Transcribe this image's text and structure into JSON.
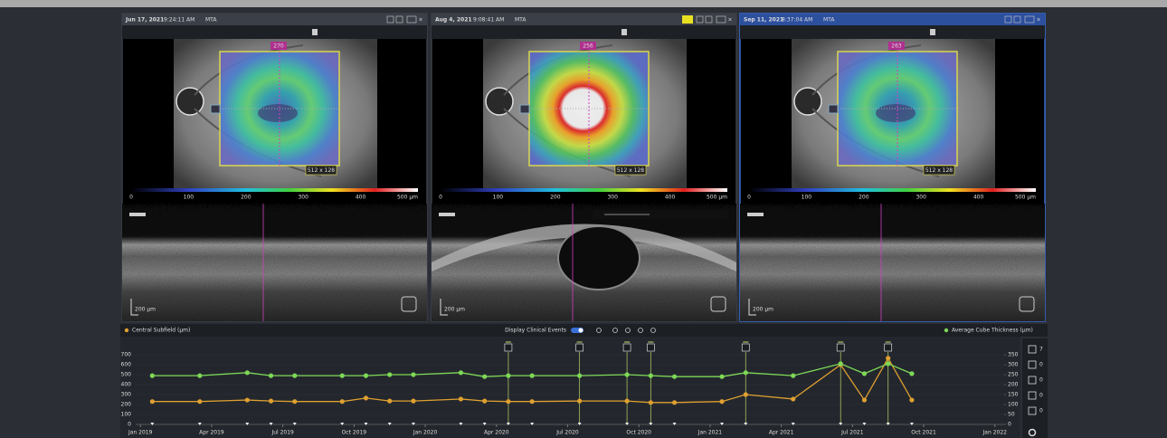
{
  "panels": [
    {
      "date": "Jun 17, 2021",
      "time": "9:24:11 AM",
      "operator": "MTA",
      "center_value": "270",
      "scan_size": "512 x 128"
    },
    {
      "date": "Aug 4, 2021",
      "time": "9:08:41 AM",
      "operator": "MTA",
      "center_value": "256",
      "scan_size": "512 x 128"
    },
    {
      "date": "Sep 11, 2021",
      "time": "8:37:04 AM",
      "operator": "MTA",
      "center_value": "263",
      "scan_size": "512 x 128"
    }
  ],
  "scale_labels": [
    "0",
    "100",
    "200",
    "300",
    "400",
    "500 µm"
  ],
  "oct_scale": "200 µm",
  "clinical_events_label": "Display Clinical Events",
  "side_tools": [
    "7",
    "0",
    "0",
    "0",
    "0"
  ],
  "chart_data": {
    "type": "line",
    "x": [
      "2019-01",
      "2019-03",
      "2019-05",
      "2019-06",
      "2019-07",
      "2019-09",
      "2019-10",
      "2019-11",
      "2019-12",
      "2020-02",
      "2020-03",
      "2020-04",
      "2020-05",
      "2020-07",
      "2020-09",
      "2020-10",
      "2020-11",
      "2021-01",
      "2021-02",
      "2021-04",
      "2021-06",
      "2021-07",
      "2021-08",
      "2021-09"
    ],
    "series": [
      {
        "name": "Central Subfield (µm)",
        "color": "#e0a030",
        "values": [
          230,
          230,
          245,
          235,
          230,
          230,
          265,
          235,
          235,
          255,
          235,
          230,
          230,
          235,
          235,
          220,
          220,
          230,
          300,
          255,
          600,
          245,
          665,
          245
        ]
      },
      {
        "name": "Average Cube Thickness (µm)",
        "color": "#7ed957",
        "axis": "y2",
        "values": [
          245,
          245,
          260,
          245,
          245,
          245,
          245,
          250,
          250,
          260,
          240,
          245,
          245,
          245,
          250,
          245,
          240,
          240,
          260,
          245,
          305,
          255,
          305,
          255
        ]
      }
    ],
    "events": [
      "2020-04",
      "2020-07",
      "2020-09",
      "2020-10",
      "2021-02",
      "2021-06",
      "2021-08"
    ],
    "ylim": [
      0,
      700
    ],
    "yticks": [
      0,
      100,
      200,
      300,
      400,
      500,
      600,
      700
    ],
    "y2lim": [
      0,
      350
    ],
    "y2ticks": [
      0,
      50,
      100,
      150,
      200,
      250,
      300,
      350
    ],
    "xlim": [
      "2018-12",
      "2022-02"
    ],
    "xticks": [
      {
        "value": "2019-01",
        "label": "Jan 2019"
      },
      {
        "value": "2019-04",
        "label": "Apr 2019"
      },
      {
        "value": "2019-07",
        "label": "Jul 2019"
      },
      {
        "value": "2019-10",
        "label": "Oct 2019"
      },
      {
        "value": "2020-01",
        "label": "Jan 2020"
      },
      {
        "value": "2020-04",
        "label": "Apr 2020"
      },
      {
        "value": "2020-07",
        "label": "Jul 2020"
      },
      {
        "value": "2020-10",
        "label": "Oct 2020"
      },
      {
        "value": "2021-01",
        "label": "Jan 2021"
      },
      {
        "value": "2021-04",
        "label": "Apr 2021"
      },
      {
        "value": "2021-07",
        "label": "Jul 2021"
      },
      {
        "value": "2021-10",
        "label": "Oct 2021"
      },
      {
        "value": "2022-01",
        "label": "Jan 2022"
      }
    ]
  }
}
